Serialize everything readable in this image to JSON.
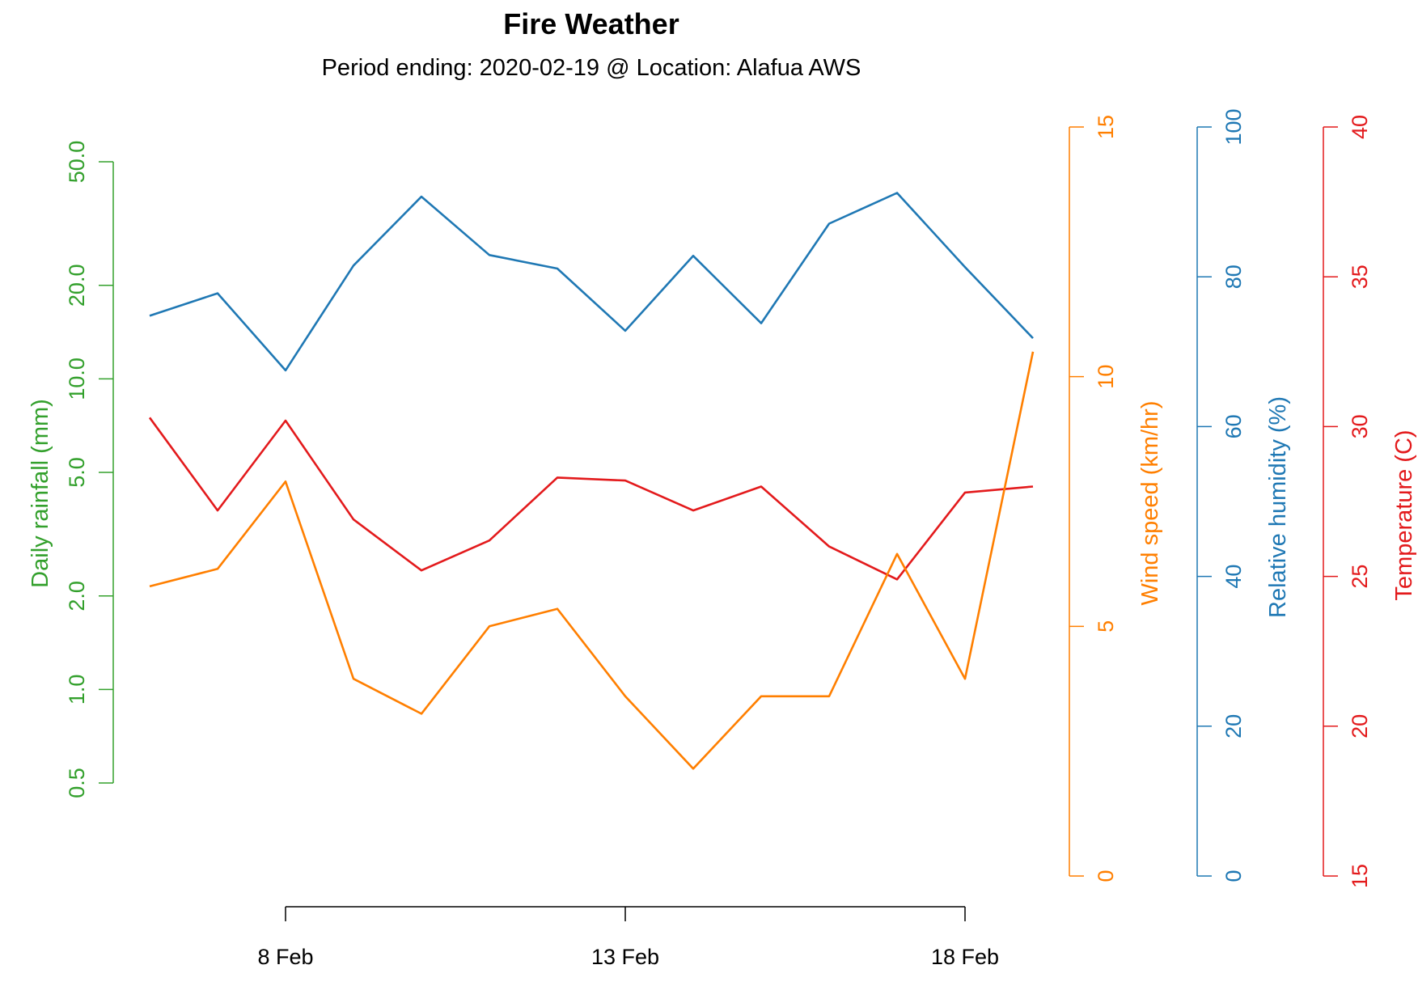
{
  "chart_data": {
    "type": "line",
    "title": "Fire Weather",
    "subtitle": "Period ending: 2020-02-19 @ Location: Alafua AWS",
    "x": [
      "2020-02-06",
      "2020-02-07",
      "2020-02-08",
      "2020-02-09",
      "2020-02-10",
      "2020-02-11",
      "2020-02-12",
      "2020-02-13",
      "2020-02-14",
      "2020-02-15",
      "2020-02-16",
      "2020-02-17",
      "2020-02-18",
      "2020-02-19"
    ],
    "x_ticks": [
      {
        "date": "2020-02-08",
        "label": "8 Feb"
      },
      {
        "date": "2020-02-13",
        "label": "13 Feb"
      },
      {
        "date": "2020-02-18",
        "label": "18 Feb"
      }
    ],
    "axes": {
      "rainfall": {
        "label": "Daily rainfall (mm)",
        "color": "#33a02c",
        "scale": "log",
        "range": [
          0.5,
          50
        ],
        "ticks": [
          "0.5",
          "1.0",
          "2.0",
          "5.0",
          "10.0",
          "20.0",
          "50.0"
        ]
      },
      "wind": {
        "label": "Wind speed (km/hr)",
        "color": "#ff7f00",
        "scale": "linear",
        "range": [
          0,
          15
        ],
        "ticks": [
          "0",
          "5",
          "10",
          "15"
        ]
      },
      "humidity": {
        "label": "Relative humidity (%)",
        "color": "#1f78b4",
        "scale": "linear",
        "range": [
          0,
          100
        ],
        "ticks": [
          "0",
          "20",
          "40",
          "60",
          "80",
          "100"
        ]
      },
      "temperature": {
        "label": "Temperature (C)",
        "color": "#e31a1c",
        "scale": "linear",
        "range": [
          15,
          40
        ],
        "ticks": [
          "15",
          "20",
          "25",
          "30",
          "35",
          "40"
        ]
      }
    },
    "series": [
      {
        "name": "Relative humidity (%)",
        "axis": "humidity",
        "color": "#1f78b4",
        "values": [
          74.8,
          77.8,
          67.5,
          81.5,
          90.7,
          82.9,
          81.1,
          72.8,
          82.8,
          73.8,
          87.1,
          91.2,
          81.3,
          71.8
        ]
      },
      {
        "name": "Temperature (C)",
        "axis": "temperature",
        "color": "#e31a1c",
        "values": [
          30.3,
          27.2,
          30.2,
          26.9,
          25.2,
          26.2,
          28.3,
          28.2,
          27.2,
          28.0,
          26.0,
          24.9,
          27.8,
          28.0
        ]
      },
      {
        "name": "Wind speed (km/hr)",
        "axis": "wind",
        "color": "#ff7f00",
        "values": [
          5.8,
          6.15,
          7.9,
          3.95,
          3.25,
          5.0,
          5.35,
          3.6,
          2.15,
          3.6,
          3.6,
          6.45,
          3.95,
          10.5
        ]
      }
    ],
    "grid": false,
    "legend": "none"
  }
}
